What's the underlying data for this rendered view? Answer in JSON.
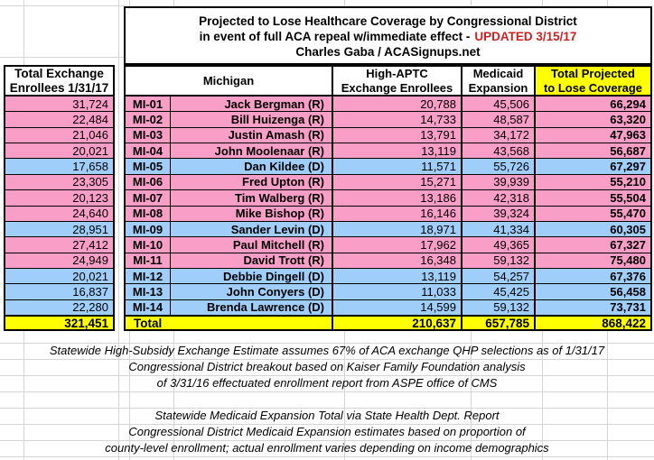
{
  "title": {
    "line1": "Projected to Lose Healthcare Coverage by Congressional District",
    "line2_black": "in event of full ACA repeal w/immediate effect -",
    "line2_red": "UPDATED 3/15/17",
    "line3": "Charles Gaba / ACASignups.net"
  },
  "headers": {
    "left_line1": "Total Exchange",
    "left_line2": "Enrollees 1/31/17",
    "state": "Michigan",
    "aptc_line1": "High-APTC",
    "aptc_line2": "Exchange Enrollees",
    "medicaid_line1": "Medicaid",
    "medicaid_line2": "Expansion",
    "total_line1": "Total Projected",
    "total_line2": "to Lose Coverage"
  },
  "rows": [
    {
      "exchange": "31,724",
      "district": "MI-01",
      "name": "Jack Bergman (R)",
      "party": "R",
      "aptc": "20,788",
      "medicaid": "45,506",
      "total": "66,294"
    },
    {
      "exchange": "22,484",
      "district": "MI-02",
      "name": "Bill Huizenga (R)",
      "party": "R",
      "aptc": "14,733",
      "medicaid": "48,587",
      "total": "63,320"
    },
    {
      "exchange": "21,046",
      "district": "MI-03",
      "name": "Justin Amash (R)",
      "party": "R",
      "aptc": "13,791",
      "medicaid": "34,172",
      "total": "47,963"
    },
    {
      "exchange": "20,021",
      "district": "MI-04",
      "name": "John Moolenaar (R)",
      "party": "R",
      "aptc": "13,119",
      "medicaid": "43,568",
      "total": "56,687"
    },
    {
      "exchange": "17,658",
      "district": "MI-05",
      "name": "Dan Kildee (D)",
      "party": "D",
      "aptc": "11,571",
      "medicaid": "55,726",
      "total": "67,297"
    },
    {
      "exchange": "23,305",
      "district": "MI-06",
      "name": "Fred Upton (R)",
      "party": "R",
      "aptc": "15,271",
      "medicaid": "39,939",
      "total": "55,210"
    },
    {
      "exchange": "20,123",
      "district": "MI-07",
      "name": "Tim Walberg (R)",
      "party": "R",
      "aptc": "13,186",
      "medicaid": "42,318",
      "total": "55,504"
    },
    {
      "exchange": "24,640",
      "district": "MI-08",
      "name": "Mike Bishop (R)",
      "party": "R",
      "aptc": "16,146",
      "medicaid": "39,324",
      "total": "55,470"
    },
    {
      "exchange": "28,951",
      "district": "MI-09",
      "name": "Sander Levin (D)",
      "party": "D",
      "aptc": "18,971",
      "medicaid": "41,334",
      "total": "60,305"
    },
    {
      "exchange": "27,412",
      "district": "MI-10",
      "name": "Paul Mitchell (R)",
      "party": "R",
      "aptc": "17,962",
      "medicaid": "49,365",
      "total": "67,327"
    },
    {
      "exchange": "24,949",
      "district": "MI-11",
      "name": "David Trott (R)",
      "party": "R",
      "aptc": "16,348",
      "medicaid": "59,132",
      "total": "75,480"
    },
    {
      "exchange": "20,021",
      "district": "MI-12",
      "name": "Debbie Dingell (D)",
      "party": "D",
      "aptc": "13,119",
      "medicaid": "54,257",
      "total": "67,376"
    },
    {
      "exchange": "16,837",
      "district": "MI-13",
      "name": "John Conyers (D)",
      "party": "D",
      "aptc": "11,033",
      "medicaid": "45,425",
      "total": "56,458"
    },
    {
      "exchange": "22,280",
      "district": "MI-14",
      "name": "Brenda Lawrence (D)",
      "party": "D",
      "aptc": "14,599",
      "medicaid": "59,132",
      "total": "73,731"
    }
  ],
  "totals": {
    "label": "Total",
    "exchange": "321,451",
    "aptc": "210,637",
    "medicaid": "657,785",
    "total": "868,422"
  },
  "footnotes": [
    "Statewide High-Subsidy Exchange Estimate assumes 67% of ACA exchange QHP selections as of 1/31/17",
    "Congressional District breakout based on Kaiser Family Foundation analysis",
    "of 3/31/16 effectuated enrollment report from ASPE office of CMS",
    "",
    "Statewide Medicaid Expansion Total via State Health Dept. Report",
    "Congressional District Medicaid Expansion estimates based on proportion of",
    "county-level enrollment; actual enrollment varies depending on income demographics"
  ],
  "colors": {
    "republican_row": "#F99EC7",
    "democrat_row": "#9FCEFA",
    "total_row": "#FFFF00",
    "header_highlight": "#FFFF00",
    "updated_red": "#CC2222",
    "gridline": "#D4D4D4",
    "border": "#000000"
  }
}
